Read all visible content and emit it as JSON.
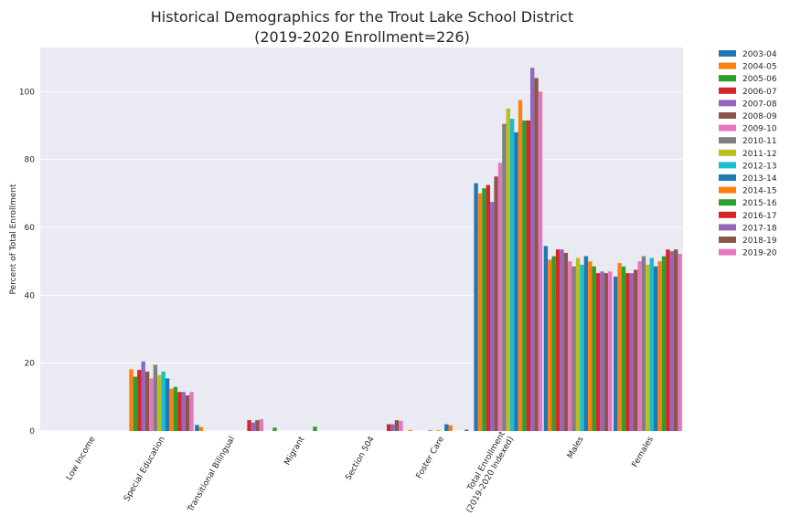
{
  "chart_data": {
    "type": "bar",
    "title": "Historical Demographics for the Trout Lake School District",
    "subtitle": "(2019-2020 Enrollment=226)",
    "xlabel": "",
    "ylabel": "Percent of Total Enrollment",
    "ylim": [
      0,
      113
    ],
    "yticks": [
      0,
      20,
      40,
      60,
      80,
      100
    ],
    "grid": true,
    "legend_position": "outside-right",
    "categories": [
      "Low Income",
      "Special Education",
      "Transitional Bilingual",
      "Migrant",
      "Section 504",
      "Foster Care",
      "Total Enrollment\n(2019-2020 Indexed)",
      "Males",
      "Females"
    ],
    "series": [
      {
        "name": "2003-04",
        "color": "#1f77b4",
        "values": [
          0,
          0,
          1.8,
          0,
          0,
          0,
          73.0,
          54.5,
          45.5
        ]
      },
      {
        "name": "2004-05",
        "color": "#ff7f0e",
        "values": [
          0,
          18.2,
          1.2,
          0,
          0,
          0.3,
          70.0,
          50.5,
          49.5
        ]
      },
      {
        "name": "2005-06",
        "color": "#2ca02c",
        "values": [
          0,
          16.0,
          0,
          1.0,
          0,
          0,
          71.5,
          51.5,
          48.5
        ]
      },
      {
        "name": "2006-07",
        "color": "#d62728",
        "values": [
          0,
          18.0,
          0,
          0,
          0,
          0,
          72.5,
          53.5,
          46.5
        ]
      },
      {
        "name": "2007-08",
        "color": "#9467bd",
        "values": [
          0,
          20.5,
          0,
          0,
          0,
          0,
          67.5,
          53.5,
          46.5
        ]
      },
      {
        "name": "2008-09",
        "color": "#8c564b",
        "values": [
          0,
          17.5,
          0,
          0,
          0,
          0,
          75.0,
          52.5,
          47.5
        ]
      },
      {
        "name": "2009-10",
        "color": "#e377c2",
        "values": [
          0,
          15.5,
          0,
          0,
          0,
          0.3,
          79.0,
          50.0,
          50.0
        ]
      },
      {
        "name": "2010-11",
        "color": "#7f7f7f",
        "values": [
          0,
          19.5,
          0,
          0,
          0,
          0,
          90.5,
          48.5,
          51.5
        ]
      },
      {
        "name": "2011-12",
        "color": "#bcbd22",
        "values": [
          0,
          16.5,
          0,
          0,
          0,
          0.3,
          95.0,
          51.0,
          49.0
        ]
      },
      {
        "name": "2012-13",
        "color": "#17becf",
        "values": [
          0,
          17.5,
          0,
          0,
          0,
          0,
          92.0,
          49.0,
          51.0
        ]
      },
      {
        "name": "2013-14",
        "color": "#1f77b4",
        "values": [
          0,
          15.5,
          0,
          0,
          0,
          2.0,
          88.0,
          51.5,
          48.5
        ]
      },
      {
        "name": "2014-15",
        "color": "#ff7f0e",
        "values": [
          0,
          12.5,
          0,
          0,
          0,
          1.7,
          97.5,
          50.0,
          50.0
        ]
      },
      {
        "name": "2015-16",
        "color": "#2ca02c",
        "values": [
          0,
          13.0,
          0,
          1.3,
          0,
          0,
          91.5,
          48.5,
          51.5
        ]
      },
      {
        "name": "2016-17",
        "color": "#d62728",
        "values": [
          0,
          11.5,
          3.2,
          0,
          2.0,
          0,
          91.5,
          46.5,
          53.5
        ]
      },
      {
        "name": "2017-18",
        "color": "#9467bd",
        "values": [
          0,
          11.5,
          2.5,
          0,
          2.0,
          0,
          107.0,
          47.0,
          53.0
        ]
      },
      {
        "name": "2018-19",
        "color": "#8c564b",
        "values": [
          0,
          10.5,
          3.2,
          0,
          3.2,
          0.4,
          104.0,
          46.5,
          53.5
        ]
      },
      {
        "name": "2019-20",
        "color": "#e377c2",
        "values": [
          0,
          11.5,
          3.5,
          0,
          3.0,
          0,
          100.0,
          47.0,
          52.2
        ]
      }
    ]
  }
}
